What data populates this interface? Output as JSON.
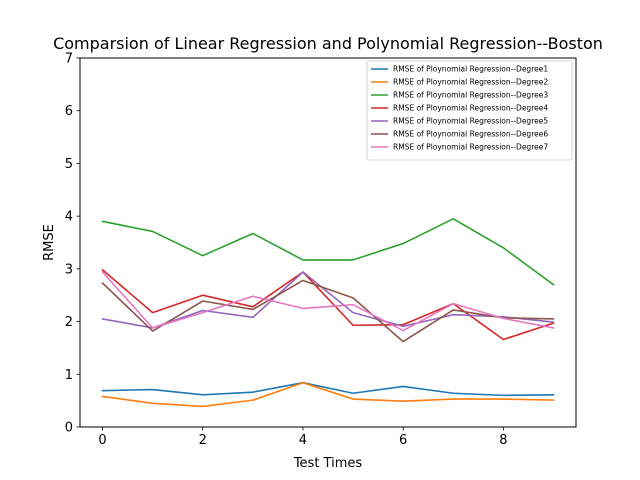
{
  "chart_data": {
    "type": "line",
    "title": "Comparsion of Linear Regression and Polynomial Regression--Boston",
    "xlabel": "Test Times",
    "ylabel": "RMSE",
    "xlim": [
      -0.45,
      9.45
    ],
    "ylim": [
      0,
      7
    ],
    "xticks": [
      "0",
      "2",
      "4",
      "6",
      "8"
    ],
    "yticks": [
      "0",
      "1",
      "2",
      "3",
      "4",
      "5",
      "6",
      "7"
    ],
    "grid": false,
    "legend_position": "top-right",
    "x": [
      0,
      1,
      2,
      3,
      4,
      5,
      6,
      7,
      8,
      9
    ],
    "series": [
      {
        "name": "RMSE of Ploynomial Regression--Degree1",
        "color": "#1f77b4",
        "values": [
          0.69,
          0.71,
          0.61,
          0.66,
          0.84,
          0.64,
          0.77,
          0.64,
          0.6,
          0.61
        ]
      },
      {
        "name": "RMSE of Ploynomial Regression--Degree2",
        "color": "#ff7f0e",
        "values": [
          0.58,
          0.45,
          0.39,
          0.51,
          0.84,
          0.53,
          0.49,
          0.53,
          0.53,
          0.51
        ]
      },
      {
        "name": "RMSE of Ploynomial Regression--Degree3",
        "color": "#2ca02c",
        "values": [
          3.9,
          3.71,
          3.25,
          3.67,
          3.17,
          3.17,
          3.48,
          3.95,
          3.4,
          2.7
        ]
      },
      {
        "name": "RMSE of Ploynomial Regression--Degree4",
        "color": "#d62728",
        "values": [
          2.98,
          2.17,
          2.5,
          2.28,
          2.94,
          1.93,
          1.94,
          2.34,
          1.66,
          1.97
        ]
      },
      {
        "name": "RMSE of Ploynomial Regression--Degree5",
        "color": "#9467bd",
        "values": [
          2.05,
          1.88,
          2.21,
          2.08,
          2.94,
          2.17,
          1.91,
          2.13,
          2.09,
          1.99
        ]
      },
      {
        "name": "RMSE of Ploynomial Regression--Degree6",
        "color": "#8c564b",
        "values": [
          2.73,
          1.82,
          2.39,
          2.23,
          2.78,
          2.45,
          1.62,
          2.22,
          2.07,
          2.05
        ]
      },
      {
        "name": "RMSE of Ploynomial Regression--Degree7",
        "color": "#e377c2",
        "values": [
          2.94,
          1.88,
          2.17,
          2.48,
          2.25,
          2.32,
          1.83,
          2.34,
          2.06,
          1.88
        ]
      }
    ]
  }
}
